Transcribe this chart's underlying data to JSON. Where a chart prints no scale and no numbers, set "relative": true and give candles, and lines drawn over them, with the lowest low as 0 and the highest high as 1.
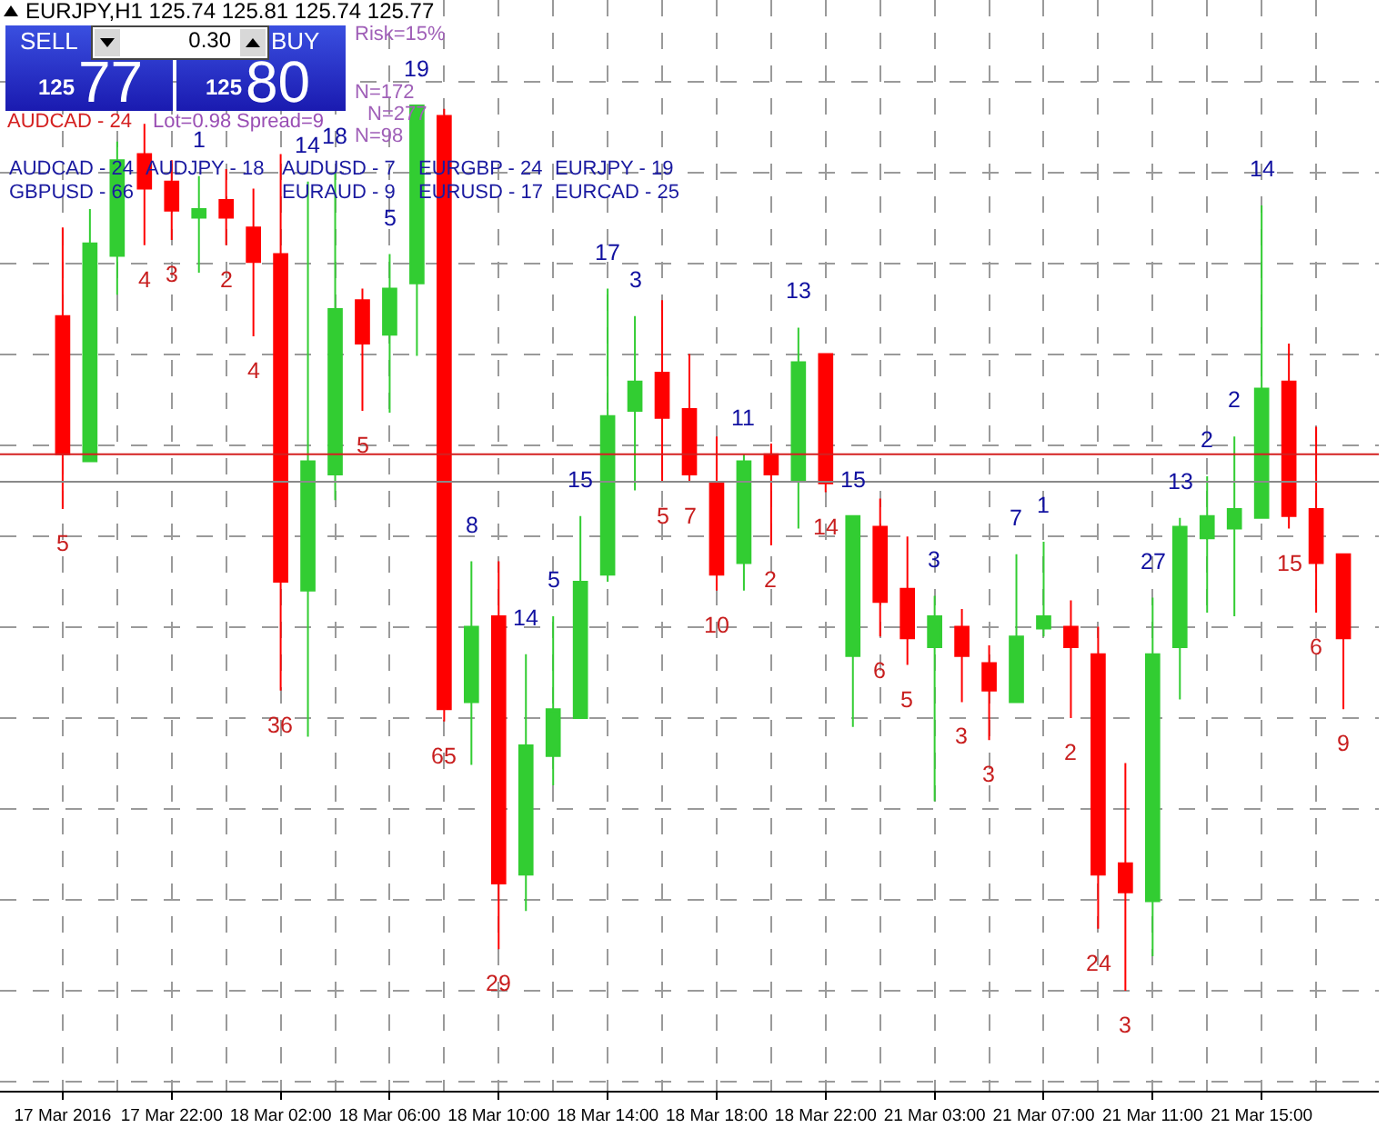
{
  "chart_data": {
    "type": "candlestick",
    "title": "EURJPY,H1  125.74 125.81 125.74 125.77",
    "relative": true,
    "grid": true,
    "categories": [
      "17 Mar 2016",
      null,
      null,
      null,
      "17 Mar 22:00",
      null,
      null,
      null,
      "18 Mar 02:00",
      null,
      null,
      null,
      "18 Mar 06:00",
      null,
      null,
      null,
      "18 Mar 10:00",
      null,
      null,
      null,
      "18 Mar 14:00",
      null,
      null,
      null,
      "18 Mar 18:00",
      null,
      null,
      null,
      "18 Mar 22:00",
      null,
      null,
      null,
      "21 Mar 03:00",
      null,
      null,
      null,
      "21 Mar 07:00",
      null,
      null,
      null,
      "21 Mar 11:00",
      null,
      null,
      null,
      "21 Mar 15:00",
      null,
      null,
      null
    ],
    "ohlc": [
      [
        0.762,
        0.862,
        0.544,
        0.606
      ],
      [
        0.598,
        0.883,
        0.598,
        0.844
      ],
      [
        0.83,
        0.959,
        0.786,
        0.938
      ],
      [
        0.945,
        0.979,
        0.842,
        0.906
      ],
      [
        0.914,
        0.938,
        0.848,
        0.881
      ],
      [
        0.873,
        0.92,
        0.811,
        0.883
      ],
      [
        0.893,
        0.928,
        0.842,
        0.873
      ],
      [
        0.862,
        0.906,
        0.739,
        0.823
      ],
      [
        0.832,
        0.945,
        0.339,
        0.462
      ],
      [
        0.452,
        0.914,
        0.287,
        0.598
      ],
      [
        0.583,
        0.924,
        0.554,
        0.77
      ],
      [
        0.78,
        0.793,
        0.655,
        0.731
      ],
      [
        0.741,
        0.832,
        0.653,
        0.793
      ],
      [
        0.799,
        1,
        0.717,
        1
      ],
      [
        0.988,
        0.996,
        0.304,
        0.318
      ],
      [
        0.326,
        0.485,
        0.255,
        0.411
      ],
      [
        0.423,
        0.485,
        0.047,
        0.121
      ],
      [
        0.131,
        0.38,
        0.09,
        0.277
      ],
      [
        0.265,
        0.423,
        0.232,
        0.318
      ],
      [
        0.308,
        0.536,
        0.308,
        0.462
      ],
      [
        0.47,
        0.793,
        0.462,
        0.649
      ],
      [
        0.655,
        0.762,
        0.565,
        0.688
      ],
      [
        0.698,
        0.78,
        0.575,
        0.647
      ],
      [
        0.657,
        0.719,
        0.575,
        0.583
      ],
      [
        0.575,
        0.626,
        0.452,
        0.47
      ],
      [
        0.483,
        0.606,
        0.452,
        0.598
      ],
      [
        0.606,
        0.618,
        0.503,
        0.583
      ],
      [
        0.575,
        0.749,
        0.522,
        0.71
      ],
      [
        0.719,
        0.719,
        0.563,
        0.573
      ],
      [
        0.378,
        0.536,
        0.298,
        0.536
      ],
      [
        0.524,
        0.556,
        0.4,
        0.439
      ],
      [
        0.454,
        0.513,
        0.368,
        0.398
      ],
      [
        0.388,
        0.446,
        0.214,
        0.423
      ],
      [
        0.411,
        0.431,
        0.326,
        0.378
      ],
      [
        0.37,
        0.39,
        0.283,
        0.339
      ],
      [
        0.326,
        0.493,
        0.326,
        0.4
      ],
      [
        0.409,
        0.507,
        0.4,
        0.423
      ],
      [
        0.411,
        0.441,
        0.308,
        0.388
      ],
      [
        0.38,
        0.411,
        0.07,
        0.131
      ],
      [
        0.144,
        0.257,
        0,
        0.111
      ],
      [
        0.101,
        0.444,
        0.039,
        0.38
      ],
      [
        0.388,
        0.534,
        0.329,
        0.524
      ],
      [
        0.511,
        0.581,
        0.427,
        0.536
      ],
      [
        0.522,
        0.626,
        0.423,
        0.544
      ],
      [
        0.534,
        0.887,
        0.534,
        0.68
      ],
      [
        0.688,
        0.731,
        0.522,
        0.536
      ],
      [
        0.544,
        0.637,
        0.427,
        0.483
      ],
      [
        0.493,
        0.493,
        0.318,
        0.398
      ]
    ],
    "colors": [
      "#ff0000",
      "#32cd32",
      "#32cd32",
      "#ff0000",
      "#ff0000",
      "#32cd32",
      "#ff0000",
      "#ff0000",
      "#ff0000",
      "#32cd32",
      "#32cd32",
      "#ff0000",
      "#32cd32",
      "#32cd32",
      "#ff0000",
      "#32cd32",
      "#ff0000",
      "#32cd32",
      "#32cd32",
      "#32cd32",
      "#32cd32",
      "#32cd32",
      "#ff0000",
      "#ff0000",
      "#ff0000",
      "#32cd32",
      "#ff0000",
      "#32cd32",
      "#ff0000",
      "#32cd32",
      "#ff0000",
      "#ff0000",
      "#32cd32",
      "#ff0000",
      "#ff0000",
      "#32cd32",
      "#32cd32",
      "#ff0000",
      "#ff0000",
      "#ff0000",
      "#32cd32",
      "#32cd32",
      "#32cd32",
      "#32cd32",
      "#32cd32",
      "#ff0000",
      "#ff0000",
      "#ff0000"
    ],
    "value_labels": [
      "5",
      null,
      null,
      "4",
      "3",
      "1",
      "2",
      "4",
      "36",
      "14",
      "18",
      "5",
      "5",
      "19",
      "65",
      "8",
      "29",
      "14",
      "5",
      "15",
      "17",
      "3",
      "5",
      "7",
      "10",
      "11",
      "2",
      "13",
      "14",
      "15",
      "6",
      "5",
      "3",
      "3",
      "3",
      "7",
      "1",
      "2",
      "24",
      "3",
      "27",
      "13",
      "2",
      "2",
      "14",
      "15",
      "6",
      "9"
    ],
    "ref_lines": [
      {
        "axis": "y",
        "value": 0.606,
        "color": "#d42020"
      },
      {
        "axis": "y",
        "value": 0.575,
        "color": "#8a8a8a"
      }
    ],
    "annotations": [
      "SELL",
      "0.30",
      "BUY",
      "125",
      "77",
      "125",
      "80",
      "Risk=15%",
      "N=172",
      "N=277",
      "N=98",
      "AUDCAD - 24",
      "Lot=0.98",
      "Spread=9",
      "AUDCAD - 24",
      "AUDJPY - 18",
      "AUDUSD - 7",
      "EURGBP - 24",
      "EURJPY - 19",
      "GBPUSD - 66",
      "EURAUD - 9",
      "EURUSD - 17",
      "EURCAD - 25"
    ]
  }
}
